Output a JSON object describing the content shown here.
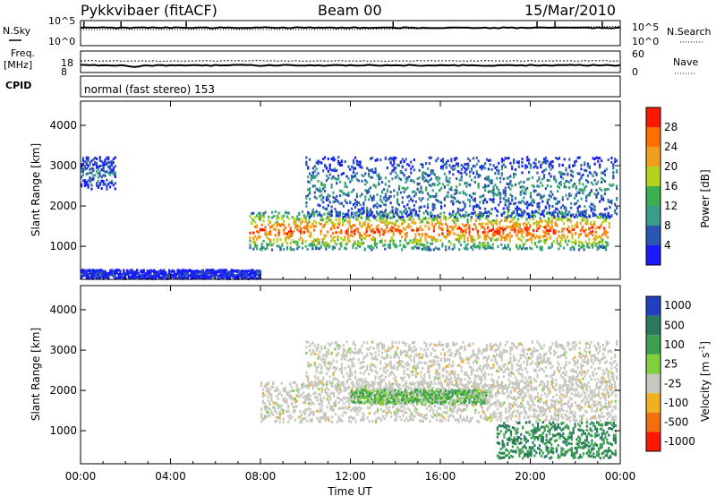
{
  "header": {
    "station": "Pykkvibaer (fitACF)",
    "beam": "Beam 00",
    "date": "15/Mar/2010"
  },
  "noise_panel": {
    "left_label": "N.Sky",
    "right_label": "N.Search",
    "left_ticks": [
      "10^5",
      "10^0"
    ],
    "right_ticks": [
      "10^5",
      "10^0"
    ]
  },
  "freq_panel": {
    "left_label_1": "Freq.",
    "left_label_2": "[MHz]",
    "right_label": "Nave",
    "left_ticks": [
      "18",
      "8"
    ],
    "right_ticks": [
      "60",
      "0"
    ]
  },
  "cpid": {
    "label": "CPID",
    "mode": "normal (fast stereo) 153"
  },
  "chart_data": [
    {
      "type": "heatmap",
      "title": "",
      "xlabel": "Time UT",
      "ylabel": "Slant Range [km]",
      "xlim": [
        "00:00",
        "24:00"
      ],
      "ylim": [
        180,
        4600
      ],
      "x_ticks": [
        "00:00",
        "04:00",
        "08:00",
        "12:00",
        "16:00",
        "20:00",
        "00:00"
      ],
      "y_ticks": [
        1000,
        2000,
        3000,
        4000
      ],
      "colorbar": {
        "label": "Power [dB]",
        "ticks": [
          4,
          8,
          12,
          16,
          20,
          24,
          28
        ],
        "range": [
          0,
          32
        ],
        "colors": [
          "#1a1aff",
          "#2a55b0",
          "#3a9c8a",
          "#3cb050",
          "#b8d020",
          "#f0a020",
          "#ff7000",
          "#ff1800"
        ]
      },
      "echo_regions": [
        {
          "feature": "main band",
          "t_start": 7.5,
          "t_end": 23.5,
          "range_start_km": 900,
          "range_end_km": 1850,
          "power_db": 28
        },
        {
          "feature": "upper band",
          "t_start": 10.0,
          "t_end": 23.8,
          "range_start_km": 1700,
          "range_end_km": 3200,
          "power_db": 10
        },
        {
          "feature": "early patch",
          "t_start": 0.0,
          "t_end": 1.5,
          "range_start_km": 2400,
          "range_end_km": 3200,
          "power_db": 8
        },
        {
          "feature": "near-range scatter",
          "t_start": 0.0,
          "t_end": 8.0,
          "range_start_km": 180,
          "range_end_km": 400,
          "power_db": 4
        }
      ]
    },
    {
      "type": "heatmap",
      "title": "",
      "xlabel": "Time UT",
      "ylabel": "Slant Range [km]",
      "xlim": [
        "00:00",
        "24:00"
      ],
      "ylim": [
        180,
        4600
      ],
      "x_ticks": [
        "00:00",
        "04:00",
        "08:00",
        "12:00",
        "16:00",
        "20:00",
        "00:00"
      ],
      "y_ticks": [
        1000,
        2000,
        3000,
        4000
      ],
      "colorbar": {
        "label": "Velocity [m s^-1]",
        "ticks": [
          "1000",
          "500",
          "100",
          "25",
          "-25",
          "-100",
          "-500",
          "-1000"
        ],
        "colors": [
          "#2040c0",
          "#2a7a60",
          "#3ca050",
          "#80d040",
          "#c8c8c0",
          "#f0b020",
          "#f07010",
          "#ff1800"
        ]
      },
      "echo_regions": [
        {
          "feature": "ground scatter",
          "t_start": 8.0,
          "t_end": 23.8,
          "range_start_km": 1200,
          "range_end_km": 2200,
          "velocity_ms": 0
        },
        {
          "feature": "upper band",
          "t_start": 10.0,
          "t_end": 23.8,
          "range_start_km": 2000,
          "range_end_km": 3200,
          "velocity_ms": 0
        },
        {
          "feature": "ionospheric echoes",
          "t_start": 12.0,
          "t_end": 18.0,
          "range_start_km": 1650,
          "range_end_km": 2000,
          "velocity_ms": 100
        },
        {
          "feature": "late echoes",
          "t_start": 18.5,
          "t_end": 23.8,
          "range_start_km": 300,
          "range_end_km": 1200,
          "velocity_ms": 300
        }
      ]
    }
  ]
}
